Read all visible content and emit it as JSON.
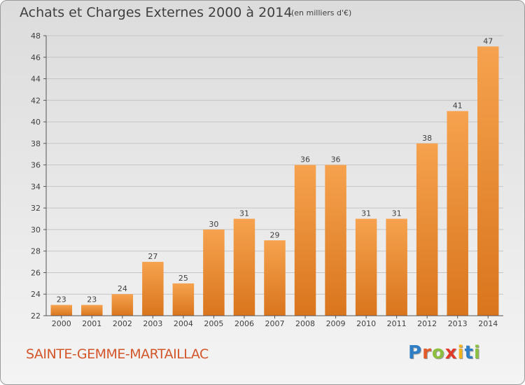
{
  "title": "Achats et Charges Externes 2000 à 2014",
  "subtitle": "(en milliers d'€)",
  "commune": "SAINTE-GEMME-MARTAILLAC",
  "logo": {
    "text": "Proxiti",
    "letter_colors": [
      "#2f7fc6",
      "#e25b2a",
      "#8cbf3f",
      "#e23a2a",
      "#f2b21e",
      "#2f7fc6",
      "#8cbf3f"
    ]
  },
  "colors": {
    "bar_top": "#f6a24e",
    "bar_bottom": "#d9751d",
    "text": "#3f3f3f",
    "commune": "#d2562a"
  },
  "chart_data": {
    "type": "bar",
    "categories": [
      "2000",
      "2001",
      "2002",
      "2003",
      "2004",
      "2005",
      "2006",
      "2007",
      "2008",
      "2009",
      "2010",
      "2011",
      "2012",
      "2013",
      "2014"
    ],
    "values": [
      23,
      23,
      24,
      27,
      25,
      30,
      31,
      29,
      36,
      36,
      31,
      31,
      38,
      41,
      47
    ],
    "ylim": [
      22,
      48
    ],
    "yticks": [
      22,
      24,
      26,
      28,
      30,
      32,
      34,
      36,
      38,
      40,
      42,
      44,
      46,
      48
    ],
    "grid": true
  }
}
